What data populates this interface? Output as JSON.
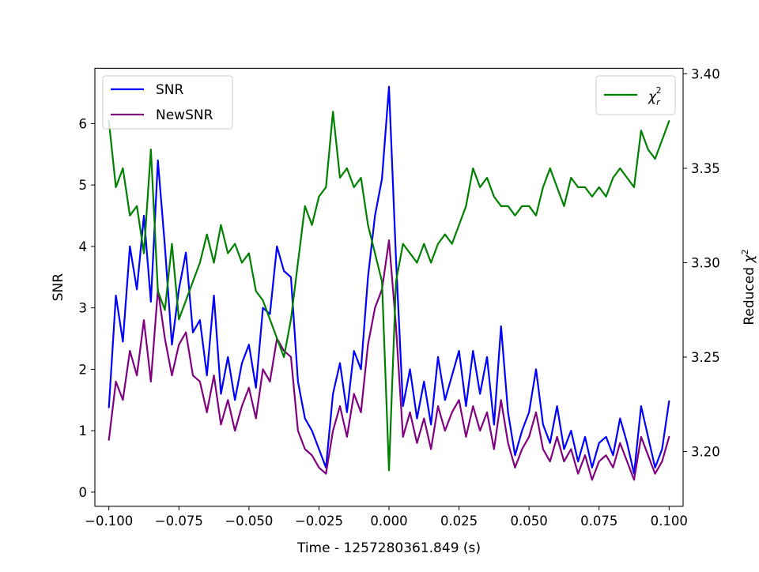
{
  "chart_data": {
    "type": "line",
    "title": "",
    "xlabel": "Time - 1257280361.849 (s)",
    "ylabel": "SNR",
    "y2label_prefix": "Reduced ",
    "y2label_symbol": "χ",
    "y2label_exp": "2",
    "xlim": [
      -0.105,
      0.105
    ],
    "ylim": [
      -0.23,
      6.9
    ],
    "y2lim": [
      3.171,
      3.403
    ],
    "x_ticks": [
      -0.1,
      -0.075,
      -0.05,
      -0.025,
      0.0,
      0.025,
      0.05,
      0.075,
      0.1
    ],
    "x_tick_labels": [
      "−0.100",
      "−0.075",
      "−0.050",
      "−0.025",
      "0.000",
      "0.025",
      "0.050",
      "0.075",
      "0.100"
    ],
    "y_ticks": [
      0,
      1,
      2,
      3,
      4,
      5,
      6
    ],
    "y_tick_labels": [
      "0",
      "1",
      "2",
      "3",
      "4",
      "5",
      "6"
    ],
    "y2_ticks": [
      3.2,
      3.25,
      3.3,
      3.35,
      3.4
    ],
    "y2_tick_labels": [
      "3.20",
      "3.25",
      "3.30",
      "3.35",
      "3.40"
    ],
    "grid": false,
    "legend_left": {
      "placement": "upper-left",
      "entries": [
        {
          "label": "SNR",
          "color": "#0000ff"
        },
        {
          "label": "NewSNR",
          "color": "#800080"
        }
      ]
    },
    "legend_right": {
      "placement": "upper-right",
      "symbol": "χ",
      "sub": "r",
      "sup": "2",
      "color": "#008000"
    },
    "series": [
      {
        "name": "SNR",
        "axis": "left",
        "color": "#0000ff",
        "x": [
          -0.1,
          -0.0975,
          -0.095,
          -0.0925,
          -0.09,
          -0.0875,
          -0.085,
          -0.0825,
          -0.08,
          -0.0775,
          -0.075,
          -0.0725,
          -0.07,
          -0.0675,
          -0.065,
          -0.0625,
          -0.06,
          -0.0575,
          -0.055,
          -0.0525,
          -0.05,
          -0.0475,
          -0.045,
          -0.0425,
          -0.04,
          -0.0375,
          -0.035,
          -0.0325,
          -0.03,
          -0.0275,
          -0.025,
          -0.0225,
          -0.02,
          -0.0175,
          -0.015,
          -0.0125,
          -0.01,
          -0.0075,
          -0.005,
          -0.0025,
          0.0,
          0.0025,
          0.005,
          0.0075,
          0.01,
          0.0125,
          0.015,
          0.0175,
          0.02,
          0.0225,
          0.025,
          0.0275,
          0.03,
          0.0325,
          0.035,
          0.0375,
          0.04,
          0.0425,
          0.045,
          0.0475,
          0.05,
          0.0525,
          0.055,
          0.0575,
          0.06,
          0.0625,
          0.065,
          0.0675,
          0.07,
          0.0725,
          0.075,
          0.0775,
          0.08,
          0.0825,
          0.085,
          0.0875,
          0.09,
          0.0925,
          0.095,
          0.0975,
          0.1
        ],
        "values": [
          1.38,
          3.2,
          2.45,
          4.0,
          3.3,
          4.5,
          3.1,
          5.4,
          4.0,
          2.4,
          3.3,
          3.9,
          2.6,
          2.8,
          1.9,
          3.2,
          1.6,
          2.2,
          1.5,
          2.1,
          2.4,
          1.7,
          3.0,
          2.9,
          4.0,
          3.6,
          3.5,
          1.8,
          1.2,
          1.0,
          0.7,
          0.4,
          1.6,
          2.1,
          1.3,
          2.3,
          2.0,
          3.5,
          4.5,
          5.1,
          6.6,
          3.8,
          1.4,
          2.0,
          1.2,
          1.8,
          1.1,
          2.2,
          1.5,
          1.9,
          2.3,
          1.4,
          2.3,
          1.6,
          2.2,
          1.1,
          2.7,
          1.3,
          0.6,
          1.0,
          1.3,
          2.0,
          1.1,
          0.8,
          1.4,
          0.7,
          1.0,
          0.5,
          0.9,
          0.4,
          0.8,
          0.9,
          0.6,
          1.2,
          0.8,
          0.3,
          1.4,
          0.9,
          0.4,
          0.7,
          1.48
        ]
      },
      {
        "name": "NewSNR",
        "axis": "left",
        "color": "#800080",
        "x": [
          -0.1,
          -0.0975,
          -0.095,
          -0.0925,
          -0.09,
          -0.0875,
          -0.085,
          -0.0825,
          -0.08,
          -0.0775,
          -0.075,
          -0.0725,
          -0.07,
          -0.0675,
          -0.065,
          -0.0625,
          -0.06,
          -0.0575,
          -0.055,
          -0.0525,
          -0.05,
          -0.0475,
          -0.045,
          -0.0425,
          -0.04,
          -0.0375,
          -0.035,
          -0.0325,
          -0.03,
          -0.0275,
          -0.025,
          -0.0225,
          -0.02,
          -0.0175,
          -0.015,
          -0.0125,
          -0.01,
          -0.0075,
          -0.005,
          -0.0025,
          0.0,
          0.0025,
          0.005,
          0.0075,
          0.01,
          0.0125,
          0.015,
          0.0175,
          0.02,
          0.0225,
          0.025,
          0.0275,
          0.03,
          0.0325,
          0.035,
          0.0375,
          0.04,
          0.0425,
          0.045,
          0.0475,
          0.05,
          0.0525,
          0.055,
          0.0575,
          0.06,
          0.0625,
          0.065,
          0.0675,
          0.07,
          0.0725,
          0.075,
          0.0775,
          0.08,
          0.0825,
          0.085,
          0.0875,
          0.09,
          0.0925,
          0.095,
          0.0975,
          0.1
        ],
        "values": [
          0.85,
          1.8,
          1.5,
          2.3,
          1.9,
          2.8,
          1.8,
          3.3,
          2.5,
          1.9,
          2.4,
          2.6,
          1.9,
          1.8,
          1.3,
          1.9,
          1.1,
          1.5,
          1.0,
          1.4,
          1.7,
          1.2,
          2.0,
          1.8,
          2.5,
          2.3,
          2.2,
          1.0,
          0.7,
          0.6,
          0.4,
          0.3,
          1.0,
          1.4,
          0.9,
          1.6,
          1.3,
          2.4,
          3.0,
          3.3,
          4.1,
          2.7,
          0.9,
          1.3,
          0.8,
          1.2,
          0.7,
          1.4,
          1.0,
          1.3,
          1.5,
          0.9,
          1.4,
          1.0,
          1.3,
          0.7,
          1.5,
          0.8,
          0.4,
          0.7,
          0.9,
          1.3,
          0.7,
          0.5,
          0.9,
          0.5,
          0.7,
          0.3,
          0.6,
          0.2,
          0.5,
          0.6,
          0.4,
          0.8,
          0.5,
          0.2,
          0.9,
          0.6,
          0.3,
          0.5,
          0.9
        ]
      },
      {
        "name": "χr²",
        "axis": "right",
        "color": "#008000",
        "x": [
          -0.1,
          -0.0975,
          -0.095,
          -0.0925,
          -0.09,
          -0.0875,
          -0.085,
          -0.0825,
          -0.08,
          -0.0775,
          -0.075,
          -0.0725,
          -0.07,
          -0.0675,
          -0.065,
          -0.0625,
          -0.06,
          -0.0575,
          -0.055,
          -0.0525,
          -0.05,
          -0.0475,
          -0.045,
          -0.0425,
          -0.04,
          -0.0375,
          -0.035,
          -0.0325,
          -0.03,
          -0.0275,
          -0.025,
          -0.0225,
          -0.02,
          -0.0175,
          -0.015,
          -0.0125,
          -0.01,
          -0.0075,
          -0.005,
          -0.0025,
          0.0,
          0.0025,
          0.005,
          0.0075,
          0.01,
          0.0125,
          0.015,
          0.0175,
          0.02,
          0.0225,
          0.025,
          0.0275,
          0.03,
          0.0325,
          0.035,
          0.0375,
          0.04,
          0.0425,
          0.045,
          0.0475,
          0.05,
          0.0525,
          0.055,
          0.0575,
          0.06,
          0.0625,
          0.065,
          0.0675,
          0.07,
          0.0725,
          0.075,
          0.0775,
          0.08,
          0.0825,
          0.085,
          0.0875,
          0.09,
          0.0925,
          0.095,
          0.0975,
          0.1
        ],
        "values": [
          3.375,
          3.34,
          3.35,
          3.325,
          3.33,
          3.305,
          3.36,
          3.285,
          3.275,
          3.31,
          3.27,
          3.28,
          3.29,
          3.3,
          3.315,
          3.3,
          3.32,
          3.305,
          3.31,
          3.3,
          3.305,
          3.285,
          3.28,
          3.27,
          3.26,
          3.25,
          3.27,
          3.3,
          3.33,
          3.32,
          3.335,
          3.34,
          3.38,
          3.345,
          3.35,
          3.34,
          3.345,
          3.32,
          3.305,
          3.29,
          3.19,
          3.29,
          3.31,
          3.305,
          3.3,
          3.31,
          3.3,
          3.31,
          3.315,
          3.31,
          3.32,
          3.33,
          3.35,
          3.34,
          3.345,
          3.335,
          3.33,
          3.33,
          3.325,
          3.33,
          3.33,
          3.325,
          3.34,
          3.35,
          3.34,
          3.33,
          3.345,
          3.34,
          3.34,
          3.335,
          3.34,
          3.335,
          3.345,
          3.35,
          3.345,
          3.34,
          3.37,
          3.36,
          3.355,
          3.365,
          3.375
        ]
      }
    ]
  }
}
